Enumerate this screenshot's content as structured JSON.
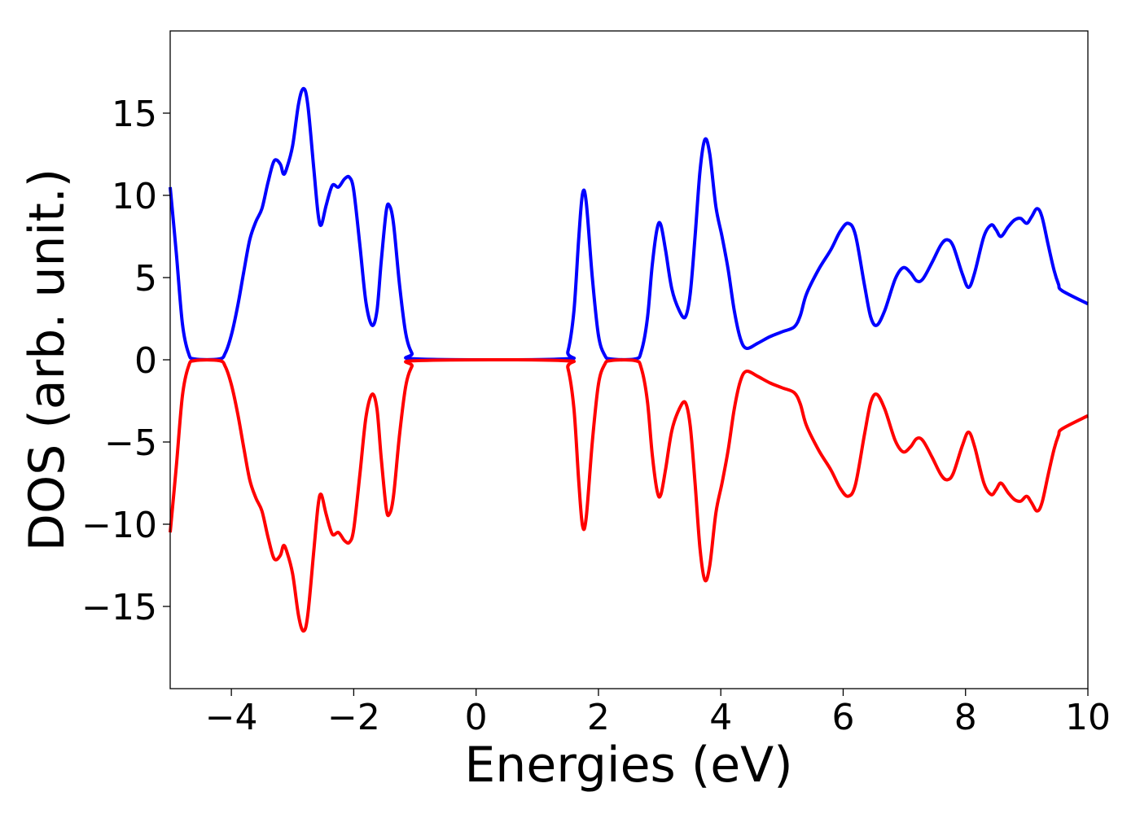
{
  "chart_data": {
    "type": "line",
    "xlabel": "Energies (eV)",
    "ylabel": "DOS (arb. unit.)",
    "xlim": [
      -5,
      10
    ],
    "ylim": [
      -20,
      20
    ],
    "grid": false,
    "legend": "none",
    "x_ticks": [
      -4,
      -2,
      0,
      2,
      4,
      6,
      8,
      10
    ],
    "x_tick_labels": [
      "−4",
      "−2",
      "0",
      "2",
      "4",
      "6",
      "8",
      "10"
    ],
    "y_ticks": [
      15,
      10,
      5,
      0,
      -5,
      -10,
      -15
    ],
    "y_tick_labels": [
      "15",
      "10",
      "5",
      "0",
      "−5",
      "−10",
      "−15"
    ],
    "series": [
      {
        "color": "#0000ff",
        "points": [
          [
            -5.0,
            10.5
          ],
          [
            -4.9,
            6.5
          ],
          [
            -4.8,
            2.2
          ],
          [
            -4.7,
            0.4
          ],
          [
            -4.6,
            0.05
          ],
          [
            -4.2,
            0.05
          ],
          [
            -4.1,
            0.4
          ],
          [
            -4.0,
            1.5
          ],
          [
            -3.9,
            3.2
          ],
          [
            -3.8,
            5.3
          ],
          [
            -3.7,
            7.3
          ],
          [
            -3.6,
            8.4
          ],
          [
            -3.5,
            9.2
          ],
          [
            -3.4,
            10.8
          ],
          [
            -3.3,
            12.1
          ],
          [
            -3.2,
            11.9
          ],
          [
            -3.15,
            11.3
          ],
          [
            -3.1,
            11.6
          ],
          [
            -3.0,
            13.0
          ],
          [
            -2.9,
            15.6
          ],
          [
            -2.82,
            16.5
          ],
          [
            -2.75,
            15.5
          ],
          [
            -2.65,
            11.5
          ],
          [
            -2.58,
            8.8
          ],
          [
            -2.53,
            8.2
          ],
          [
            -2.45,
            9.4
          ],
          [
            -2.35,
            10.6
          ],
          [
            -2.25,
            10.5
          ],
          [
            -2.15,
            11.0
          ],
          [
            -2.07,
            11.1
          ],
          [
            -2.0,
            10.3
          ],
          [
            -1.9,
            7.0
          ],
          [
            -1.8,
            3.5
          ],
          [
            -1.7,
            2.1
          ],
          [
            -1.62,
            3.0
          ],
          [
            -1.55,
            6.0
          ],
          [
            -1.47,
            9.0
          ],
          [
            -1.42,
            9.4
          ],
          [
            -1.35,
            8.3
          ],
          [
            -1.25,
            4.5
          ],
          [
            -1.15,
            1.6
          ],
          [
            -1.05,
            0.4
          ],
          [
            -0.95,
            0.05
          ],
          [
            1.4,
            0.05
          ],
          [
            1.5,
            0.5
          ],
          [
            1.6,
            3.0
          ],
          [
            1.68,
            7.5
          ],
          [
            1.74,
            10.1
          ],
          [
            1.8,
            9.6
          ],
          [
            1.9,
            5.0
          ],
          [
            2.0,
            1.5
          ],
          [
            2.1,
            0.3
          ],
          [
            2.2,
            0.05
          ],
          [
            2.6,
            0.05
          ],
          [
            2.7,
            0.5
          ],
          [
            2.8,
            2.5
          ],
          [
            2.88,
            5.8
          ],
          [
            2.96,
            8.0
          ],
          [
            3.02,
            8.2
          ],
          [
            3.1,
            6.6
          ],
          [
            3.2,
            4.3
          ],
          [
            3.32,
            3.0
          ],
          [
            3.42,
            2.6
          ],
          [
            3.5,
            4.0
          ],
          [
            3.58,
            7.5
          ],
          [
            3.66,
            11.5
          ],
          [
            3.74,
            13.4
          ],
          [
            3.82,
            12.5
          ],
          [
            3.92,
            9.3
          ],
          [
            4.02,
            7.5
          ],
          [
            4.12,
            5.5
          ],
          [
            4.22,
            3.0
          ],
          [
            4.32,
            1.3
          ],
          [
            4.42,
            0.7
          ],
          [
            4.6,
            1.0
          ],
          [
            4.8,
            1.4
          ],
          [
            5.0,
            1.7
          ],
          [
            5.2,
            2.0
          ],
          [
            5.3,
            2.7
          ],
          [
            5.4,
            4.0
          ],
          [
            5.6,
            5.5
          ],
          [
            5.8,
            6.7
          ],
          [
            5.95,
            7.8
          ],
          [
            6.08,
            8.3
          ],
          [
            6.2,
            7.6
          ],
          [
            6.35,
            4.5
          ],
          [
            6.45,
            2.6
          ],
          [
            6.55,
            2.1
          ],
          [
            6.68,
            3.0
          ],
          [
            6.85,
            4.9
          ],
          [
            6.98,
            5.6
          ],
          [
            7.1,
            5.3
          ],
          [
            7.2,
            4.8
          ],
          [
            7.3,
            4.9
          ],
          [
            7.45,
            5.9
          ],
          [
            7.6,
            7.0
          ],
          [
            7.7,
            7.3
          ],
          [
            7.8,
            6.9
          ],
          [
            7.95,
            5.2
          ],
          [
            8.05,
            4.4
          ],
          [
            8.15,
            5.3
          ],
          [
            8.3,
            7.5
          ],
          [
            8.42,
            8.2
          ],
          [
            8.5,
            7.9
          ],
          [
            8.58,
            7.5
          ],
          [
            8.7,
            8.1
          ],
          [
            8.8,
            8.5
          ],
          [
            8.9,
            8.6
          ],
          [
            9.0,
            8.3
          ],
          [
            9.08,
            8.7
          ],
          [
            9.17,
            9.2
          ],
          [
            9.25,
            8.7
          ],
          [
            9.35,
            7.0
          ],
          [
            9.45,
            5.4
          ],
          [
            9.52,
            4.6
          ],
          [
            9.58,
            4.2
          ],
          [
            10.0,
            3.4
          ]
        ]
      },
      {
        "color": "#ff0000",
        "mirror_of_series": 0
      }
    ]
  }
}
